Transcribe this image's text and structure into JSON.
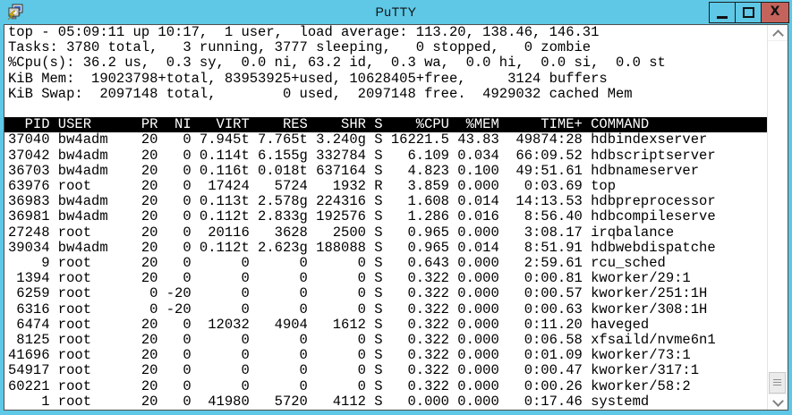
{
  "window": {
    "title": "PuTTY",
    "controls": {
      "close_glyph": "X"
    }
  },
  "colors": {
    "titlebar": "#5EC8E6",
    "close_button": "#C4635B",
    "terminal_bg": "#FFFFFF",
    "terminal_fg": "#000000",
    "table_header_bg": "#000000",
    "table_header_fg": "#FFFFFF"
  },
  "terminal": {
    "summary_lines": [
      "top - 05:09:11 up 10:17,  1 user,  load average: 113.20, 138.46, 146.31",
      "Tasks: 3780 total,   3 running, 3777 sleeping,   0 stopped,   0 zombie",
      "%Cpu(s): 36.2 us,  0.3 sy,  0.0 ni, 63.2 id,  0.3 wa,  0.0 hi,  0.0 si,  0.0 st",
      "KiB Mem:  19023798+total, 83953925+used, 10628405+free,     3124 buffers",
      "KiB Swap:  2097148 total,        0 used,  2097148 free.  4929032 cached Mem"
    ],
    "process_table": {
      "columns": [
        "PID",
        "USER",
        "PR",
        "NI",
        "VIRT",
        "RES",
        "SHR",
        "S",
        "%CPU",
        "%MEM",
        "TIME+",
        "COMMAND"
      ],
      "rows": [
        [
          "37040",
          "bw4adm",
          "20",
          "0",
          "7.945t",
          "7.765t",
          "3.240g",
          "S",
          "16221.5",
          "43.83",
          "49874:28",
          "hdbindexserver"
        ],
        [
          "37042",
          "bw4adm",
          "20",
          "0",
          "0.114t",
          "6.155g",
          "332784",
          "S",
          "6.109",
          "0.034",
          "66:09.52",
          "hdbscriptserver"
        ],
        [
          "36703",
          "bw4adm",
          "20",
          "0",
          "0.116t",
          "0.018t",
          "637164",
          "S",
          "4.823",
          "0.100",
          "49:51.61",
          "hdbnameserver"
        ],
        [
          "63976",
          "root",
          "20",
          "0",
          "17424",
          "5724",
          "1932",
          "R",
          "3.859",
          "0.000",
          "0:03.69",
          "top"
        ],
        [
          "36983",
          "bw4adm",
          "20",
          "0",
          "0.113t",
          "2.578g",
          "224316",
          "S",
          "1.608",
          "0.014",
          "14:13.53",
          "hdbpreprocessor"
        ],
        [
          "36981",
          "bw4adm",
          "20",
          "0",
          "0.112t",
          "2.833g",
          "192576",
          "S",
          "1.286",
          "0.016",
          "8:56.40",
          "hdbcompileserve"
        ],
        [
          "27248",
          "root",
          "20",
          "0",
          "20116",
          "3628",
          "2500",
          "S",
          "0.965",
          "0.000",
          "3:08.17",
          "irqbalance"
        ],
        [
          "39034",
          "bw4adm",
          "20",
          "0",
          "0.112t",
          "2.623g",
          "188088",
          "S",
          "0.965",
          "0.014",
          "8:51.91",
          "hdbwebdispatche"
        ],
        [
          "9",
          "root",
          "20",
          "0",
          "0",
          "0",
          "0",
          "S",
          "0.643",
          "0.000",
          "2:59.61",
          "rcu_sched"
        ],
        [
          "1394",
          "root",
          "20",
          "0",
          "0",
          "0",
          "0",
          "S",
          "0.322",
          "0.000",
          "0:00.81",
          "kworker/29:1"
        ],
        [
          "6259",
          "root",
          "0",
          "-20",
          "0",
          "0",
          "0",
          "S",
          "0.322",
          "0.000",
          "0:00.57",
          "kworker/251:1H"
        ],
        [
          "6316",
          "root",
          "0",
          "-20",
          "0",
          "0",
          "0",
          "S",
          "0.322",
          "0.000",
          "0:00.63",
          "kworker/308:1H"
        ],
        [
          "6474",
          "root",
          "20",
          "0",
          "12032",
          "4904",
          "1612",
          "S",
          "0.322",
          "0.000",
          "0:11.20",
          "haveged"
        ],
        [
          "8125",
          "root",
          "20",
          "0",
          "0",
          "0",
          "0",
          "S",
          "0.322",
          "0.000",
          "0:06.58",
          "xfsaild/nvme6n1"
        ],
        [
          "41696",
          "root",
          "20",
          "0",
          "0",
          "0",
          "0",
          "S",
          "0.322",
          "0.000",
          "0:01.09",
          "kworker/73:1"
        ],
        [
          "54917",
          "root",
          "20",
          "0",
          "0",
          "0",
          "0",
          "S",
          "0.322",
          "0.000",
          "0:00.47",
          "kworker/317:1"
        ],
        [
          "60221",
          "root",
          "20",
          "0",
          "0",
          "0",
          "0",
          "S",
          "0.322",
          "0.000",
          "0:00.26",
          "kworker/58:2"
        ],
        [
          "1",
          "root",
          "20",
          "0",
          "41980",
          "5720",
          "4112",
          "S",
          "0.000",
          "0.000",
          "0:17.46",
          "systemd"
        ]
      ]
    }
  }
}
